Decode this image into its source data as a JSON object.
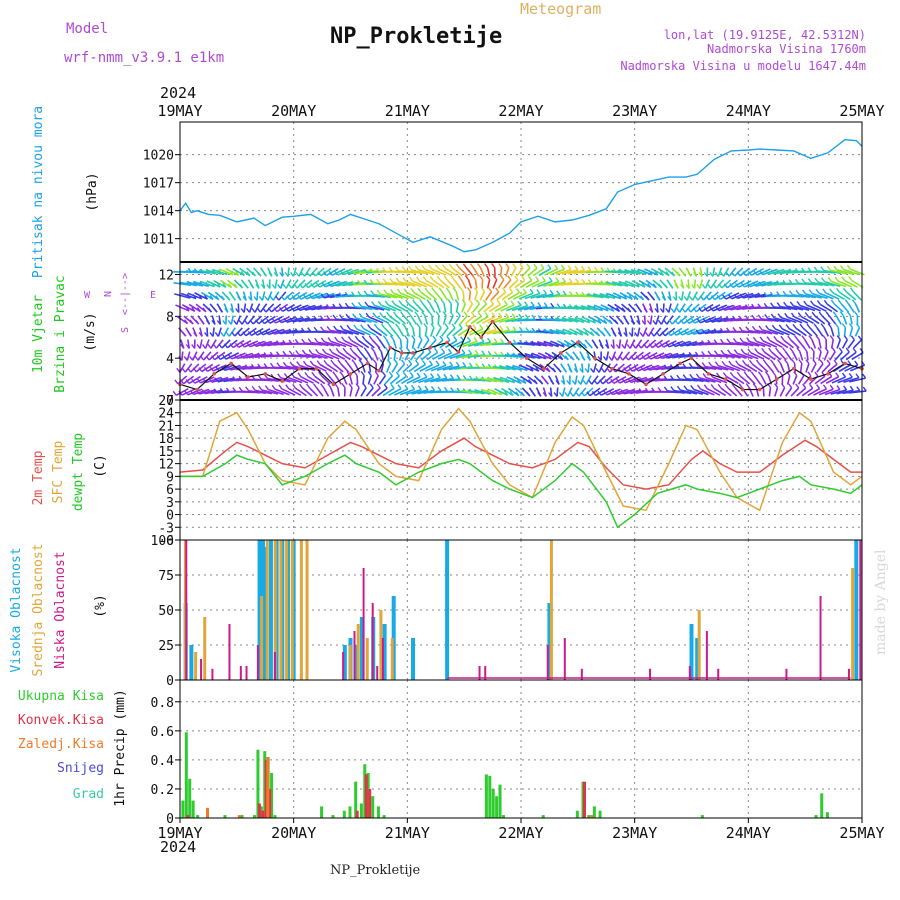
{
  "header": {
    "model_label": "Model",
    "model_name": "wrf-nmm_v3.9.1  e1km",
    "title": "NP_Prokletije",
    "meteogram": "Meteogram",
    "lonlat": "lon,lat (19.9125E, 42.5312N)",
    "elevation": "Nadmorska Visina 1760m",
    "model_elevation": "Nadmorska Visina u modelu 1647.44m",
    "year": "2024",
    "footer_title": "NP_Prokletije",
    "watermark": "made by Angel"
  },
  "colors": {
    "pressure": "#1ea0e6",
    "temp2m": "#e6504a",
    "sfc": "#e0a63a",
    "dewpt": "#2ecc2e",
    "high_cloud": "#18aae6",
    "mid_cloud": "#e0a63a",
    "low_cloud": "#cc1a8c",
    "precip_total": "#2ecc2e",
    "precip_conv": "#e6304a",
    "precip_frozen": "#f07a2a",
    "precip_snow": "#4a4adc",
    "precip_graupel": "#3acca8",
    "wind_label": "#22c822",
    "compass": "#b04ad6",
    "grid": "#888888"
  },
  "chart_data": [
    {
      "type": "line",
      "panel": "pressure",
      "ylabel": "Pritisak na nivou mora",
      "units": "(hPa)",
      "yticks": [
        1011,
        1014,
        1017,
        1020
      ],
      "ylim": [
        1008.5,
        1023.5
      ],
      "xticks": [
        "19MAY",
        "20MAY",
        "21MAY",
        "22MAY",
        "23MAY",
        "24MAY",
        "25MAY"
      ],
      "x_days": [
        0,
        0.05,
        0.1,
        0.15,
        0.25,
        0.35,
        0.5,
        0.65,
        0.75,
        0.9,
        1.0,
        1.15,
        1.3,
        1.4,
        1.5,
        1.6,
        1.75,
        1.9,
        2.05,
        2.2,
        2.4,
        2.5,
        2.6,
        2.75,
        2.9,
        3.0,
        3.15,
        3.3,
        3.45,
        3.6,
        3.75,
        3.85,
        4.0,
        4.15,
        4.3,
        4.45,
        4.55,
        4.7,
        4.85,
        5.0,
        5.1,
        5.25,
        5.4,
        5.55,
        5.7,
        5.85,
        5.95,
        6.0
      ],
      "values": [
        1014.0,
        1014.8,
        1013.8,
        1014.0,
        1013.6,
        1013.5,
        1012.8,
        1013.2,
        1012.4,
        1013.3,
        1013.4,
        1013.6,
        1012.6,
        1013.0,
        1013.6,
        1013.2,
        1012.6,
        1011.6,
        1010.6,
        1011.2,
        1010.2,
        1009.6,
        1009.8,
        1010.6,
        1011.6,
        1012.8,
        1013.4,
        1012.8,
        1013.0,
        1013.5,
        1014.2,
        1016.0,
        1016.8,
        1017.2,
        1017.6,
        1017.6,
        1017.9,
        1019.5,
        1020.4,
        1020.5,
        1020.6,
        1020.5,
        1020.4,
        1019.6,
        1020.2,
        1021.6,
        1021.5,
        1020.9
      ]
    },
    {
      "type": "line",
      "panel": "wind",
      "ylabel": [
        "10m Vjetar",
        "Brzina i Pravac"
      ],
      "units": "(m/s)",
      "compass": [
        "N",
        "E",
        "S",
        "W"
      ],
      "yticks": [
        0,
        4,
        8,
        12
      ],
      "ylim": [
        0,
        13.2
      ],
      "series": [
        {
          "name": "speed",
          "x_days": [
            0,
            0.15,
            0.3,
            0.45,
            0.6,
            0.75,
            0.9,
            1.05,
            1.2,
            1.35,
            1.5,
            1.65,
            1.75,
            1.85,
            1.95,
            2.05,
            2.2,
            2.35,
            2.45,
            2.55,
            2.65,
            2.75,
            2.9,
            3.05,
            3.2,
            3.35,
            3.5,
            3.65,
            3.8,
            3.95,
            4.1,
            4.25,
            4.4,
            4.5,
            4.65,
            4.8,
            4.95,
            5.1,
            5.25,
            5.4,
            5.55,
            5.7,
            5.85,
            6.0
          ],
          "values": [
            1.5,
            1.0,
            2.5,
            3.5,
            2.2,
            2.5,
            1.8,
            3.0,
            3.0,
            1.5,
            2.5,
            3.5,
            2.8,
            5.0,
            4.5,
            4.5,
            5.0,
            5.5,
            4.6,
            7.0,
            6.0,
            7.5,
            5.5,
            4.0,
            3.0,
            4.5,
            5.5,
            4.0,
            3.0,
            2.5,
            1.5,
            2.5,
            3.5,
            4.0,
            2.5,
            2.0,
            1.0,
            1.0,
            2.0,
            3.0,
            2.0,
            2.5,
            3.5,
            3.0
          ]
        }
      ]
    },
    {
      "type": "line",
      "panel": "temperature",
      "ylabel": [
        "2m Temp",
        "SFC Temp",
        "dewpt Temp"
      ],
      "units": "(C)",
      "yticks": [
        -6,
        -3,
        0,
        3,
        6,
        9,
        12,
        15,
        18,
        21,
        24,
        27
      ],
      "ylim": [
        -6,
        27
      ],
      "series": [
        {
          "name": "2m Temp",
          "x_days": [
            0,
            0.2,
            0.4,
            0.5,
            0.6,
            0.75,
            0.9,
            1.1,
            1.3,
            1.5,
            1.6,
            1.75,
            1.9,
            2.1,
            2.3,
            2.5,
            2.6,
            2.75,
            2.9,
            3.1,
            3.3,
            3.5,
            3.6,
            3.75,
            3.9,
            4.1,
            4.3,
            4.5,
            4.6,
            4.75,
            4.9,
            5.1,
            5.3,
            5.5,
            5.6,
            5.75,
            5.9,
            6.0
          ],
          "values": [
            10,
            10.5,
            15,
            17,
            16,
            14,
            12,
            11,
            14,
            17,
            16,
            14,
            12,
            11,
            15,
            18,
            16,
            14,
            12,
            11,
            13,
            17,
            16,
            11,
            7,
            6,
            7,
            13,
            15,
            12,
            10,
            10,
            14,
            17.5,
            16,
            13,
            10,
            10
          ]
        },
        {
          "name": "SFC Temp",
          "x_days": [
            0,
            0.2,
            0.35,
            0.5,
            0.6,
            0.75,
            0.9,
            1.1,
            1.3,
            1.45,
            1.55,
            1.75,
            1.9,
            2.1,
            2.3,
            2.45,
            2.55,
            2.75,
            2.9,
            3.1,
            3.3,
            3.45,
            3.55,
            3.75,
            3.9,
            4.1,
            4.3,
            4.45,
            4.55,
            4.75,
            4.9,
            5.1,
            5.3,
            5.45,
            5.55,
            5.75,
            5.9,
            6.0
          ],
          "values": [
            9,
            9,
            22,
            24,
            20,
            12,
            8,
            7,
            18,
            22,
            20,
            12,
            9,
            8,
            20,
            25,
            22,
            12,
            7,
            4,
            17,
            23,
            21,
            10,
            2,
            1,
            12,
            21,
            20,
            10,
            4,
            1,
            17,
            24,
            22,
            10,
            7,
            9
          ]
        },
        {
          "name": "dewpt Temp",
          "x_days": [
            0,
            0.2,
            0.4,
            0.5,
            0.6,
            0.75,
            0.9,
            1.1,
            1.3,
            1.45,
            1.55,
            1.75,
            1.9,
            2.1,
            2.3,
            2.45,
            2.55,
            2.75,
            2.9,
            3.1,
            3.3,
            3.45,
            3.55,
            3.75,
            3.85,
            4.0,
            4.2,
            4.45,
            4.55,
            4.75,
            4.9,
            5.1,
            5.3,
            5.45,
            5.55,
            5.75,
            5.9,
            6.0
          ],
          "values": [
            9,
            9,
            12,
            14,
            13,
            12,
            7,
            9,
            12,
            14,
            12,
            10,
            7,
            10,
            12,
            13,
            12,
            8,
            6,
            4,
            8,
            12,
            10,
            3,
            -3,
            0,
            5,
            7,
            6,
            5,
            4,
            6,
            8,
            9,
            7,
            6,
            5,
            7
          ]
        }
      ]
    },
    {
      "type": "bar",
      "panel": "cloud",
      "ylabel": [
        "Visoka Oblacnost",
        "Srednja Oblacnost",
        "Niska Oblacnost"
      ],
      "units": "(%)",
      "yticks": [
        0,
        25,
        50,
        75,
        100
      ],
      "ylim": [
        0,
        100
      ],
      "series": [
        {
          "name": "Visoka Oblacnost",
          "x_days": [
            0.05,
            0.1,
            0.7,
            0.73,
            0.76,
            0.8,
            0.85,
            0.9,
            0.95,
            1.0,
            1.45,
            1.5,
            1.55,
            1.6,
            1.7,
            1.8,
            1.88,
            2.05,
            2.35,
            3.25,
            4.5,
            4.55,
            5.95
          ],
          "values": [
            55,
            25,
            100,
            100,
            95,
            100,
            100,
            100,
            100,
            100,
            25,
            30,
            25,
            45,
            45,
            40,
            60,
            30,
            100,
            55,
            40,
            30,
            100
          ]
        },
        {
          "name": "Srednja Oblacnost",
          "x_days": [
            0.03,
            0.12,
            0.2,
            0.7,
            0.75,
            0.82,
            0.87,
            0.92,
            0.97,
            1.05,
            1.1,
            1.48,
            1.55,
            1.63,
            1.75,
            1.85,
            3.25,
            4.55,
            5.9
          ],
          "values": [
            100,
            20,
            45,
            60,
            100,
            100,
            100,
            100,
            100,
            100,
            100,
            25,
            40,
            30,
            50,
            30,
            100,
            50,
            80
          ]
        },
        {
          "name": "Niska Oblacnost",
          "x_days": [
            0.02,
            0.15,
            0.25,
            0.4,
            0.5,
            0.55,
            0.65,
            0.8,
            1.4,
            1.5,
            1.58,
            1.66,
            1.7,
            1.75,
            2.6,
            2.65,
            3.2,
            3.35,
            3.5,
            4.1,
            4.45,
            4.6,
            4.7,
            5.3,
            5.6,
            5.85,
            5.95
          ],
          "values": [
            100,
            15,
            8,
            40,
            10,
            10,
            25,
            20,
            20,
            35,
            80,
            55,
            10,
            30,
            10,
            10,
            25,
            30,
            8,
            8,
            10,
            35,
            8,
            8,
            60,
            8,
            100
          ]
        }
      ]
    },
    {
      "type": "bar",
      "panel": "precip",
      "ylabel": "1hr Precip (mm)",
      "legend": [
        "Ukupna Kisa",
        "Konvek.Kisa",
        "Zaledj.Kisa",
        "Snijeg",
        "Grad"
      ],
      "yticks": [
        0,
        0.2,
        0.4,
        0.6,
        0.8
      ],
      "ylim": [
        0,
        0.95
      ],
      "series": [
        {
          "name": "Ukupna Kisa",
          "x_days": [
            0.03,
            0.06,
            0.09,
            0.12,
            0.16,
            0.4,
            0.55,
            0.66,
            0.69,
            0.72,
            0.75,
            0.78,
            0.81,
            0.84,
            1.25,
            1.35,
            1.45,
            1.5,
            1.55,
            1.6,
            1.63,
            1.66,
            1.7,
            1.75,
            1.8,
            2.7,
            2.73,
            2.76,
            2.79,
            2.82,
            2.85,
            3.2,
            3.5,
            3.55,
            3.6,
            3.65,
            3.7,
            4.6,
            5.6,
            5.65,
            5.7
          ],
          "values": [
            0.12,
            0.59,
            0.27,
            0.12,
            0.02,
            0.02,
            0.02,
            0.02,
            0.47,
            0.08,
            0.46,
            0.42,
            0.31,
            0.02,
            0.08,
            0.02,
            0.05,
            0.08,
            0.25,
            0.1,
            0.37,
            0.31,
            0.15,
            0.08,
            0.02,
            0.3,
            0.29,
            0.2,
            0.15,
            0.23,
            0.02,
            0.02,
            0.05,
            0.25,
            0.02,
            0.08,
            0.05,
            0.02,
            0.02,
            0.17,
            0.04
          ]
        },
        {
          "name": "Konvek.Kisa",
          "x_days": [
            0.06,
            0.69,
            0.72,
            0.75,
            0.78,
            1.55,
            1.63,
            1.66,
            3.55
          ],
          "values": [
            0.02,
            0.1,
            0.05,
            0.4,
            0.2,
            0.05,
            0.3,
            0.2,
            0.25
          ]
        },
        {
          "name": "Zaledj.Kisa",
          "x_days": [
            0.22,
            0.5,
            0.75,
            3.6
          ],
          "values": [
            0.07,
            0.02,
            0.42,
            0.02
          ]
        },
        {
          "name": "Snijeg",
          "x_days": [],
          "values": []
        },
        {
          "name": "Grad",
          "x_days": [],
          "values": []
        }
      ]
    }
  ]
}
